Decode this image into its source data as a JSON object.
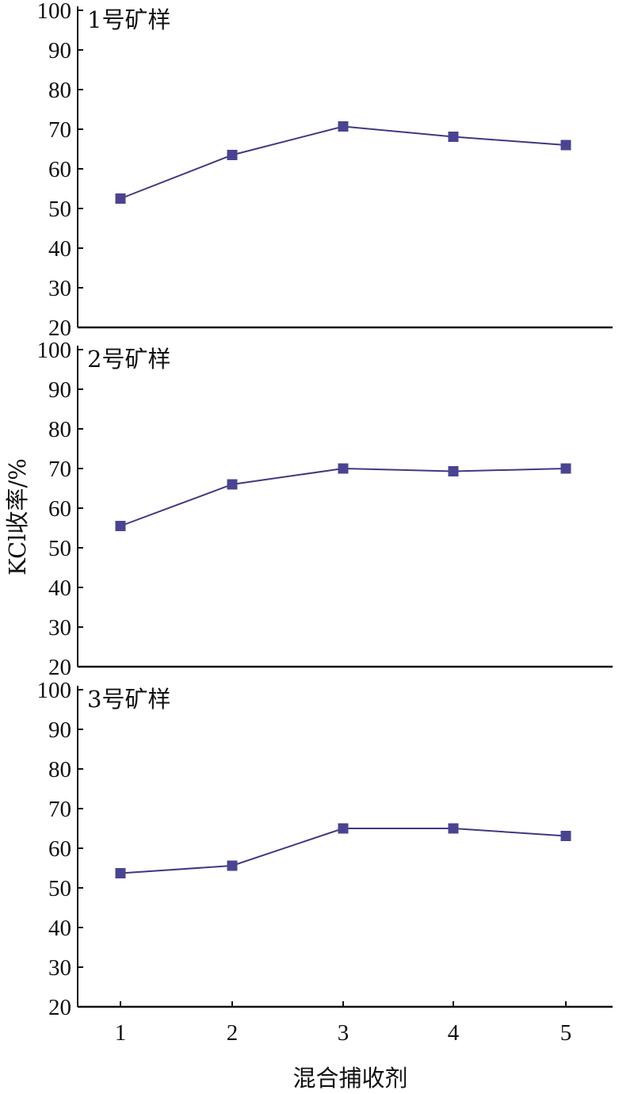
{
  "ylabel": "KCl收率/%",
  "xlabel": "混合捕收剂",
  "line_color": "#3d3a80",
  "marker_color": "#4a4490",
  "chart_data": [
    {
      "type": "line",
      "title": "1号矿样",
      "x": [
        1,
        2,
        3,
        4,
        5
      ],
      "series": [
        {
          "values": [
            52.5,
            63.5,
            70.7,
            68.1,
            66.0
          ]
        }
      ],
      "ylim": [
        20,
        100
      ],
      "yticks": [
        20,
        30,
        40,
        50,
        60,
        70,
        80,
        90,
        100
      ],
      "grid": false
    },
    {
      "type": "line",
      "title": "2号矿样",
      "x": [
        1,
        2,
        3,
        4,
        5
      ],
      "series": [
        {
          "values": [
            55.5,
            66.0,
            70.0,
            69.3,
            70.0
          ]
        }
      ],
      "ylim": [
        20,
        100
      ],
      "yticks": [
        20,
        30,
        40,
        50,
        60,
        70,
        80,
        90,
        100
      ],
      "grid": false
    },
    {
      "type": "line",
      "title": "3号矿样",
      "x": [
        1,
        2,
        3,
        4,
        5
      ],
      "series": [
        {
          "values": [
            53.7,
            55.6,
            65.0,
            65.0,
            63.1
          ]
        }
      ],
      "ylim": [
        20,
        100
      ],
      "yticks": [
        20,
        30,
        40,
        50,
        60,
        70,
        80,
        90,
        100
      ],
      "xticks": [
        "1",
        "2",
        "3",
        "4",
        "5"
      ],
      "grid": false
    }
  ]
}
